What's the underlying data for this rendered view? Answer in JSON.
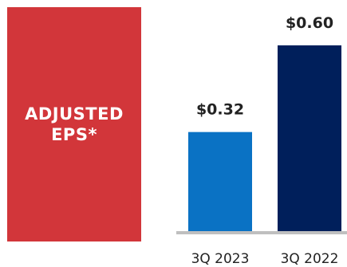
{
  "panel": {
    "label": "ADJUSTED\nEPS*",
    "color": "#d2363a"
  },
  "chart_data": {
    "type": "bar",
    "title": "ADJUSTED EPS*",
    "categories": [
      "3Q 2023",
      "3Q 2022"
    ],
    "values": [
      0.32,
      0.6
    ],
    "value_labels": [
      "$0.32",
      "$0.60"
    ],
    "colors": [
      "#0a72c4",
      "#001f5b"
    ],
    "ylim": [
      0,
      0.7
    ],
    "grid": false,
    "axis_color": "#bfbfbf",
    "text_color": "#222222"
  }
}
